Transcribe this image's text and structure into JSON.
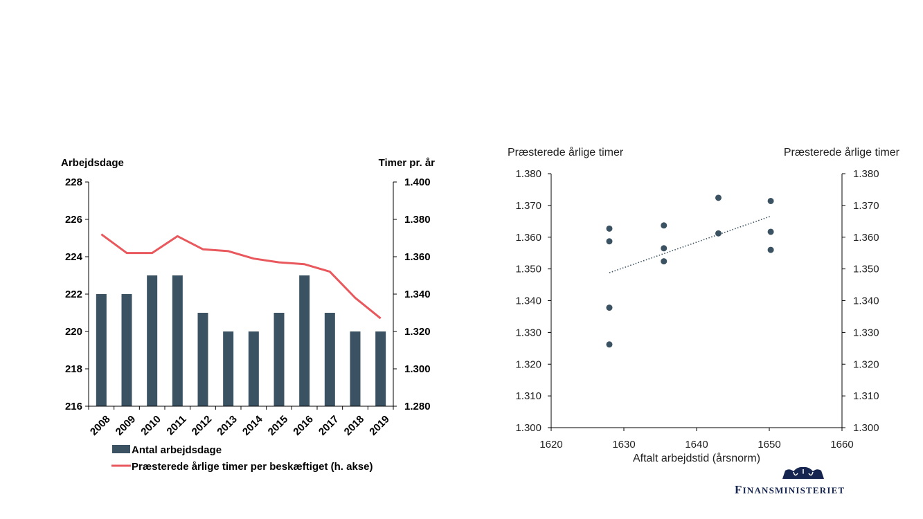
{
  "chart_data": [
    {
      "type": "bar+line",
      "left_axis_label": "Arbejdsdage",
      "right_axis_label": "Timer pr. år",
      "categories": [
        "2008",
        "2009",
        "2010",
        "2011",
        "2012",
        "2013",
        "2014",
        "2015",
        "2016",
        "2017",
        "2018",
        "2019"
      ],
      "series": [
        {
          "name": "Antal arbejdsdage",
          "type": "bar",
          "axis": "left",
          "values": [
            222,
            222,
            223,
            223,
            221,
            220,
            220,
            221,
            223,
            221,
            220,
            220
          ],
          "color": "#3b5262"
        },
        {
          "name": "Præsterede årlige timer per beskæftiget (h. akse)",
          "type": "line",
          "axis": "right",
          "values": [
            1372,
            1362,
            1362,
            1371,
            1364,
            1363,
            1359,
            1357,
            1356,
            1352,
            1338,
            1327
          ],
          "color": "#e8585c"
        }
      ],
      "left_ylim": [
        216,
        228
      ],
      "left_ticks": [
        "216",
        "218",
        "220",
        "222",
        "224",
        "226",
        "228"
      ],
      "right_ylim": [
        1280,
        1400
      ],
      "right_ticks": [
        "1.280",
        "1.300",
        "1.320",
        "1.340",
        "1.360",
        "1.380",
        "1.400"
      ],
      "legend": "bottom"
    },
    {
      "type": "scatter",
      "left_axis_label": "Præsterede årlige timer",
      "right_axis_label": "Præsterede årlige timer",
      "xlabel": "Aftalt arbejdstid (årsnorm)",
      "xlim": [
        1620,
        1660
      ],
      "x_ticks": [
        "1620",
        "1630",
        "1640",
        "1650",
        "1660"
      ],
      "ylim": [
        1300,
        1380
      ],
      "y_ticks": [
        "1.300",
        "1.310",
        "1.320",
        "1.330",
        "1.340",
        "1.350",
        "1.360",
        "1.370",
        "1.380"
      ],
      "points": [
        {
          "x": 1628,
          "y": 1362.7
        },
        {
          "x": 1628,
          "y": 1358.7
        },
        {
          "x": 1628,
          "y": 1337.8
        },
        {
          "x": 1628,
          "y": 1326.2
        },
        {
          "x": 1635.5,
          "y": 1363.7
        },
        {
          "x": 1635.5,
          "y": 1356.5
        },
        {
          "x": 1635.5,
          "y": 1352.4
        },
        {
          "x": 1643,
          "y": 1372.4
        },
        {
          "x": 1643,
          "y": 1361.2
        },
        {
          "x": 1650.2,
          "y": 1371.4
        },
        {
          "x": 1650.2,
          "y": 1361.7
        },
        {
          "x": 1650.2,
          "y": 1356.0
        }
      ],
      "trendline": {
        "x": [
          1628,
          1650.2
        ],
        "y": [
          1348.8,
          1366.6
        ],
        "style": "dotted"
      },
      "color": "#3b5262"
    }
  ],
  "logo": {
    "text": "Finansministeriet",
    "display": "FINANSMINISTERIET",
    "icon": "crown-icon",
    "color": "#16254f"
  }
}
